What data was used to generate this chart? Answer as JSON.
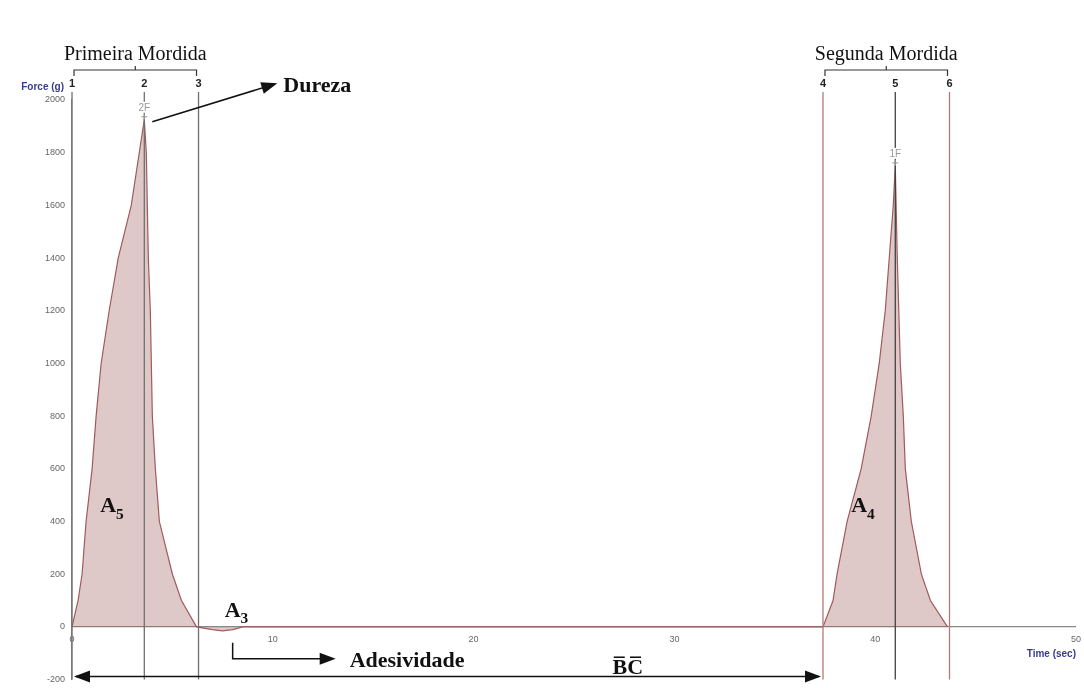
{
  "chart_data": {
    "type": "area",
    "xlabel": "Time (sec)",
    "ylabel": "Force (g)",
    "xlim": [
      0,
      50
    ],
    "xticks": [
      0,
      10,
      20,
      30,
      40,
      50
    ],
    "ylim": [
      -200,
      2000
    ],
    "yticks": [
      -200,
      0,
      200,
      400,
      600,
      800,
      1000,
      1200,
      1400,
      1600,
      1800,
      2000
    ],
    "grid": false,
    "legend": false,
    "marker": "none",
    "series": [
      {
        "color": "#a05a5a",
        "x": [
          0,
          0.3,
          0.5,
          0.7,
          1.0,
          1.2,
          1.45,
          1.85,
          2.3,
          2.95,
          3.6,
          3.7,
          3.8,
          3.9,
          3.95,
          4.0,
          4.15,
          4.35,
          5.0,
          5.45,
          6.2,
          7.0,
          7.5,
          8.0,
          8.5,
          9.5,
          15,
          20,
          25,
          30,
          35,
          37.4,
          37.9,
          38.1,
          38.6,
          39.3,
          39.8,
          40.2,
          40.5,
          40.7,
          40.9,
          41.0,
          41.1,
          41.25,
          41.4,
          41.5,
          41.8,
          42.3,
          42.75,
          43.6
        ],
        "values": [
          0,
          100,
          200,
          400,
          600,
          800,
          1000,
          1200,
          1400,
          1600,
          1925,
          1800,
          1400,
          1200,
          1000,
          800,
          600,
          400,
          200,
          100,
          0,
          -10,
          -15,
          -10,
          0,
          0,
          0,
          0,
          0,
          0,
          0,
          0,
          100,
          200,
          400,
          600,
          800,
          1000,
          1200,
          1400,
          1600,
          1750,
          1400,
          1000,
          800,
          600,
          400,
          200,
          100,
          0
        ]
      }
    ],
    "ref_lines": [
      {
        "axis": "x",
        "value": 0,
        "color": "#707070"
      },
      {
        "axis": "x",
        "value": 3.6,
        "color": "#707070"
      },
      {
        "axis": "x",
        "value": 6.3,
        "color": "#707070"
      },
      {
        "axis": "x",
        "value": 37.4,
        "color": "#b07a7a"
      },
      {
        "axis": "x",
        "value": 41.0,
        "color": "#404040"
      },
      {
        "axis": "x",
        "value": 43.7,
        "color": "#b07a7a"
      }
    ],
    "annotations": [
      "Primeira Mordida",
      "Segunda Mordida",
      "Dureza",
      {
        "text": "2F",
        "x": 3.6,
        "y": 1925
      },
      {
        "text": "1F",
        "x": 41.0,
        "y": 1750
      },
      "A$_{5}$",
      "A$_{4}$",
      {
        "text": "A$_{3}$",
        "x": 8.0,
        "y": -15
      },
      "Adesividade",
      "B̅C̅",
      "1",
      "2",
      "3",
      "4",
      "5",
      "6"
    ]
  }
}
